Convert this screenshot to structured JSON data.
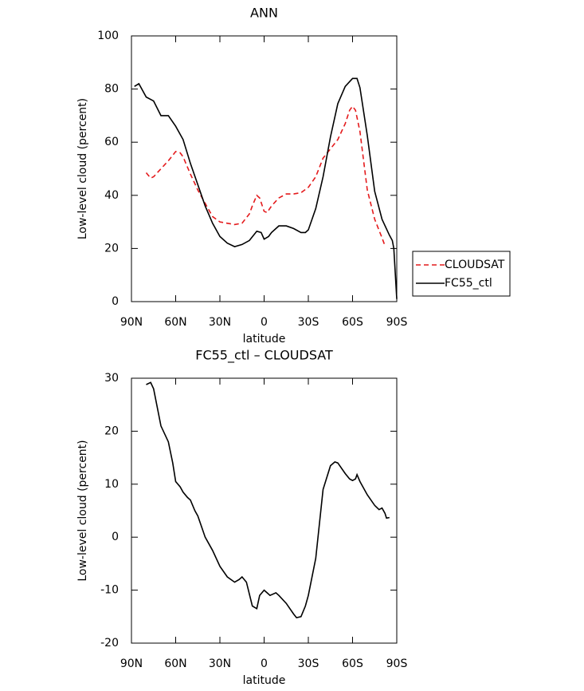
{
  "chart_data": [
    {
      "type": "line",
      "title": "ANN",
      "x_label": "latitude",
      "y_label": "Low-level cloud (percent)",
      "xlim": [
        90,
        -90
      ],
      "ylim": [
        0,
        100
      ],
      "xticks": [
        {
          "value": 90,
          "label": "90N"
        },
        {
          "value": 60,
          "label": "60N"
        },
        {
          "value": 30,
          "label": "30N"
        },
        0,
        {
          "value": -30,
          "label": "30S"
        },
        {
          "value": -60,
          "label": "60S"
        },
        {
          "value": -90,
          "label": "90S"
        }
      ],
      "yticks": [
        0,
        20,
        40,
        60,
        80,
        100
      ],
      "legend": "right",
      "series": [
        {
          "name": "CLOUDSAT",
          "color": "#e41a1c",
          "line_style": "dashed",
          "x": [
            80,
            77,
            75,
            70,
            65,
            60,
            57,
            55,
            50,
            45,
            40,
            35,
            30,
            25,
            20,
            15,
            10,
            8,
            5,
            3,
            0,
            -2,
            -5,
            -10,
            -15,
            -20,
            -25,
            -30,
            -35,
            -40,
            -45,
            -50,
            -55,
            -58,
            -60,
            -62,
            -65,
            -70,
            -75,
            -80,
            -82
          ],
          "values": [
            48.5,
            46.5,
            47,
            50,
            53,
            56.5,
            56,
            54.5,
            48,
            42,
            37,
            32,
            30,
            29.5,
            29,
            29.5,
            33,
            36,
            40,
            39,
            34,
            33.5,
            36,
            39,
            40.5,
            40.5,
            41,
            43,
            47,
            54,
            57.5,
            61,
            67,
            72,
            73.5,
            72,
            64,
            42,
            31,
            24,
            21
          ]
        },
        {
          "name": "FC55_ctl",
          "color": "#000000",
          "line_style": "solid",
          "x": [
            88,
            85,
            80,
            75,
            70,
            65,
            60,
            55,
            50,
            45,
            40,
            35,
            30,
            25,
            20,
            15,
            10,
            5,
            2,
            0,
            -3,
            -5,
            -10,
            -15,
            -20,
            -25,
            -28,
            -30,
            -35,
            -40,
            -45,
            -50,
            -55,
            -60,
            -63,
            -65,
            -70,
            -75,
            -80,
            -85,
            -87,
            -88,
            -90
          ],
          "values": [
            81,
            82,
            77,
            75.5,
            70,
            70,
            66,
            61,
            52,
            44,
            36,
            29.5,
            24.5,
            22,
            20.7,
            21.5,
            23,
            26.5,
            26,
            23.5,
            24.5,
            26,
            28.5,
            28.5,
            27.5,
            26,
            26,
            27,
            35,
            47,
            62,
            74.5,
            81,
            84,
            84,
            80.5,
            62.5,
            41.5,
            31,
            25,
            23,
            20,
            1
          ]
        }
      ]
    },
    {
      "type": "line",
      "title": "FC55_ctl – CLOUDSAT",
      "x_label": "latitude",
      "y_label": "Low-level cloud (percent)",
      "xlim": [
        90,
        -90
      ],
      "ylim": [
        -20,
        30
      ],
      "xticks": [
        {
          "value": 90,
          "label": "90N"
        },
        {
          "value": 60,
          "label": "60N"
        },
        {
          "value": 30,
          "label": "30N"
        },
        0,
        {
          "value": -30,
          "label": "30S"
        },
        {
          "value": -60,
          "label": "60S"
        },
        {
          "value": -90,
          "label": "90S"
        }
      ],
      "yticks": [
        -20,
        -10,
        0,
        10,
        20,
        30
      ],
      "color": "#000000",
      "x": [
        80,
        77,
        75,
        70,
        65,
        62,
        60,
        57,
        55,
        52,
        50,
        47,
        45,
        40,
        35,
        30,
        25,
        20,
        17,
        15,
        12,
        8,
        5,
        3,
        0,
        -2,
        -4,
        -8,
        -10,
        -15,
        -20,
        -22,
        -25,
        -28,
        -30,
        -35,
        -40,
        -45,
        -48,
        -50,
        -55,
        -58,
        -60,
        -62,
        -63,
        -65,
        -70,
        -75,
        -78,
        -80,
        -82,
        -83,
        -85
      ],
      "values": [
        28.8,
        29.2,
        28,
        21,
        18,
        14,
        10.5,
        9.5,
        8.5,
        7.5,
        7,
        5,
        4,
        0,
        -2.5,
        -5.5,
        -7.5,
        -8.5,
        -8,
        -7.5,
        -8.5,
        -13,
        -13.5,
        -11,
        -10,
        -10.5,
        -11,
        -10.5,
        -11,
        -12.5,
        -14.5,
        -15.2,
        -15,
        -13,
        -11,
        -4,
        9,
        13.5,
        14.2,
        14,
        12,
        11,
        10.7,
        11,
        11.8,
        10.5,
        8,
        6,
        5.2,
        5.5,
        4.5,
        3.6,
        3.7
      ]
    }
  ]
}
